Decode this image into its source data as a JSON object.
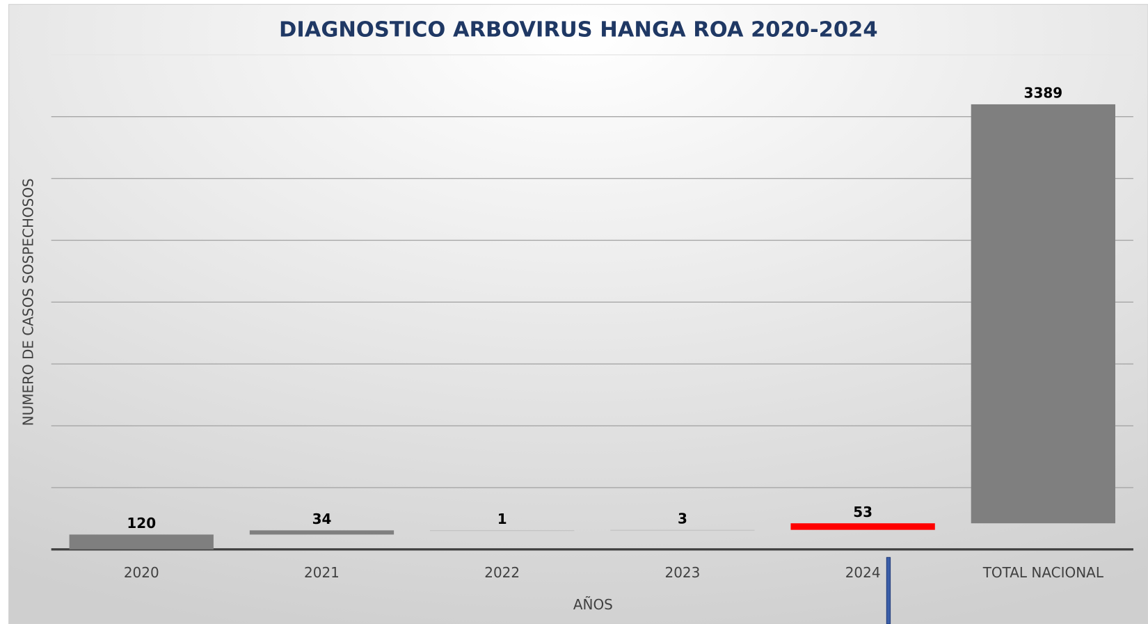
{
  "chart_data": {
    "type": "waterfall",
    "title": "DIAGNOSTICO ARBOVIRUS HANGA ROA 2020-2024",
    "y_label": "NUMERO DE  CASOS SOSPECHOSOS",
    "x_label": "AÑOS",
    "categories": [
      "2020",
      "2021",
      "2022",
      "2023",
      "2024",
      "TOTAL NACIONAL"
    ],
    "values": [
      120,
      34,
      1,
      3,
      53,
      3389
    ],
    "colors": [
      "#7f7f7f",
      "#7f7f7f",
      "#bfbfbf",
      "#bfbfbf",
      "#ff0000",
      "#7f7f7f"
    ],
    "ylim": [
      0,
      4000
    ],
    "yticks": [
      0,
      500,
      1000,
      1500,
      2000,
      2500,
      3000,
      3500,
      4000
    ],
    "grid": true
  }
}
